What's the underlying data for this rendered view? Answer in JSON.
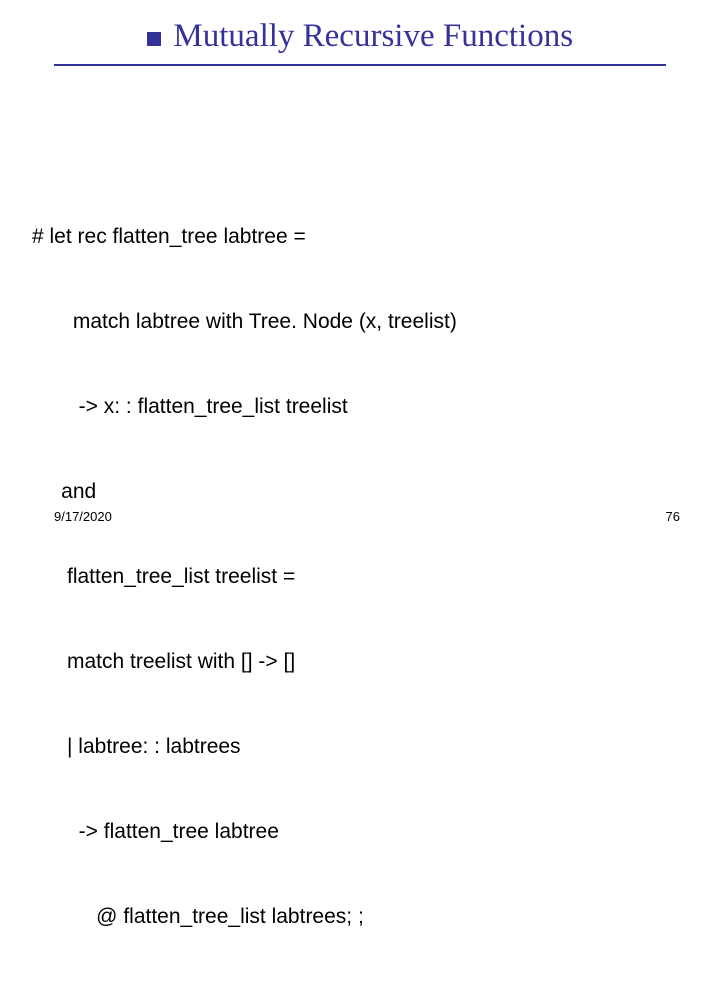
{
  "title": "Mutually Recursive Functions",
  "title_color": "#333399",
  "title_fontsize": 33,
  "title_font": "Times New Roman",
  "underline_color": "#333399",
  "bullet_color": "#333399",
  "background_color": "#ffffff",
  "code": {
    "lines": [
      "# let rec flatten_tree labtree =",
      "       match labtree with Tree. Node (x, treelist)",
      "        -> x: : flatten_tree_list treelist",
      "     and",
      "      flatten_tree_list treelist =",
      "      match treelist with [] -> []",
      "      | labtree: : labtrees",
      "        -> flatten_tree labtree",
      "           @ flatten_tree_list labtrees; ;"
    ],
    "font": "Verdana",
    "fontsize": 21,
    "color": "#000000"
  },
  "footer": {
    "date": "9/17/2020",
    "page": "76",
    "fontsize": 13,
    "color": "#000000"
  }
}
